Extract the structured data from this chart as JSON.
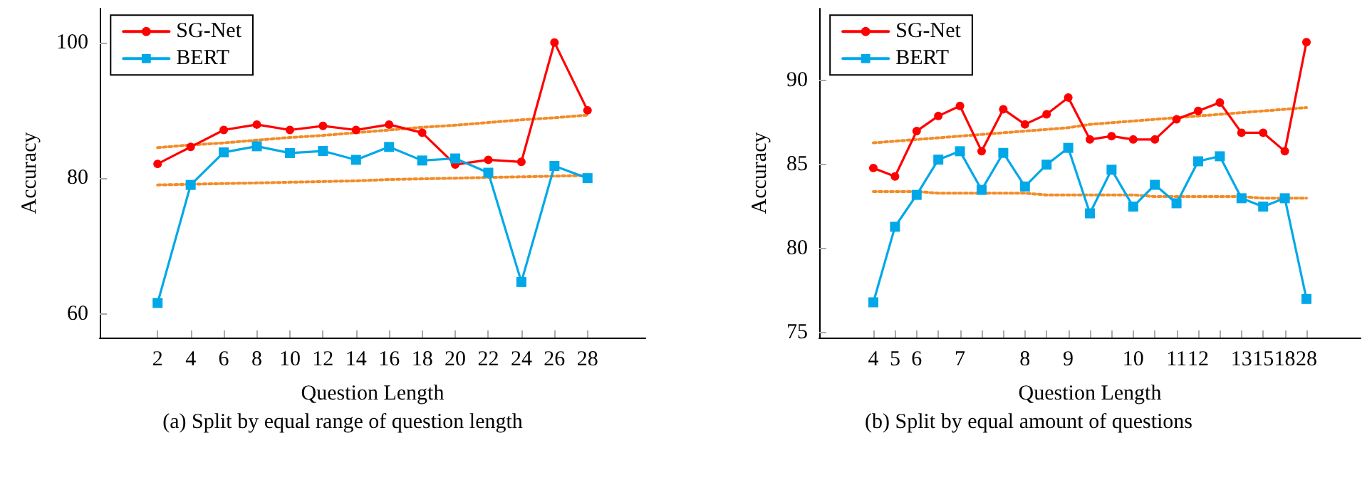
{
  "chart_data": [
    {
      "type": "line",
      "xlabel": "Question Length",
      "ylabel": "Accuracy",
      "annotations": [
        "(a) Split by equal range of question length"
      ],
      "x": [
        2,
        4,
        6,
        8,
        10,
        12,
        14,
        16,
        18,
        20,
        22,
        24,
        26,
        28
      ],
      "xlim": [
        -1.5,
        31.5
      ],
      "xticks": [
        2,
        4,
        6,
        8,
        10,
        12,
        14,
        16,
        18,
        20,
        22,
        24,
        26,
        28
      ],
      "ylim": [
        56.5,
        105
      ],
      "yticks": [
        60,
        80,
        100
      ],
      "grid": false,
      "legend": "top left",
      "line_style": "solid",
      "series": [
        {
          "name": "SG-Net",
          "color": "#ff0000",
          "marker": "circle",
          "values": [
            82.1,
            84.6,
            87.1,
            87.9,
            87.1,
            87.7,
            87.1,
            87.9,
            86.7,
            82.0,
            82.7,
            82.4,
            100,
            90.0
          ]
        },
        {
          "name": "BERT",
          "color": "#00a8e8",
          "marker": "square",
          "values": [
            61.6,
            79.0,
            83.8,
            84.7,
            83.7,
            84.0,
            82.7,
            84.6,
            82.6,
            82.9,
            80.8,
            64.7,
            81.8,
            80.0
          ]
        },
        {
          "color": "#f28c28",
          "marker": "none",
          "line_style": "dotted",
          "values": [
            84.5,
            84.9,
            85.2,
            85.6,
            86.0,
            86.3,
            86.7,
            87.1,
            87.5,
            87.8,
            88.2,
            88.6,
            88.9,
            89.3
          ]
        },
        {
          "color": "#f28c28",
          "marker": "none",
          "line_style": "dotted",
          "values": [
            79.0,
            79.1,
            79.2,
            79.3,
            79.4,
            79.5,
            79.6,
            79.8,
            79.9,
            80.0,
            80.1,
            80.2,
            80.3,
            80.4
          ]
        }
      ]
    },
    {
      "type": "line",
      "xlabel": "Question Length",
      "ylabel": "Accuracy",
      "annotations": [
        "(b) Split by equal amount of questions"
      ],
      "categories": [
        "4",
        "5",
        "6",
        null,
        "7",
        null,
        null,
        "8",
        null,
        "9",
        null,
        null,
        "10",
        null,
        "11",
        "12",
        null,
        "13",
        "15",
        "18",
        "28"
      ],
      "ylim": [
        74.7,
        94.3
      ],
      "yticks": [
        75,
        80,
        85,
        90
      ],
      "grid": false,
      "legend": "top left",
      "line_style": "solid",
      "series": [
        {
          "name": "SG-Net",
          "color": "#ff0000",
          "marker": "circle",
          "values": [
            84.8,
            84.3,
            87.0,
            87.9,
            88.5,
            85.8,
            88.3,
            87.4,
            88.0,
            89.0,
            86.5,
            86.7,
            86.5,
            86.5,
            87.7,
            88.2,
            88.7,
            86.9,
            86.9,
            85.8,
            92.3
          ]
        },
        {
          "name": "BERT",
          "color": "#00a8e8",
          "marker": "square",
          "values": [
            76.8,
            81.3,
            83.2,
            85.3,
            85.8,
            83.5,
            85.7,
            83.7,
            85.0,
            86.0,
            82.1,
            84.7,
            82.5,
            83.8,
            82.7,
            85.2,
            85.5,
            83.0,
            82.5,
            83.0,
            77.0
          ]
        },
        {
          "color": "#f28c28",
          "marker": "none",
          "line_style": "dotted",
          "values": [
            86.3,
            86.4,
            86.5,
            86.6,
            86.7,
            86.8,
            86.9,
            87.0,
            87.1,
            87.2,
            87.4,
            87.5,
            87.6,
            87.7,
            87.8,
            87.9,
            88.0,
            88.1,
            88.2,
            88.3,
            88.4
          ]
        },
        {
          "color": "#f28c28",
          "marker": "none",
          "line_style": "dotted",
          "values": [
            83.4,
            83.4,
            83.4,
            83.3,
            83.3,
            83.3,
            83.3,
            83.3,
            83.2,
            83.2,
            83.2,
            83.2,
            83.2,
            83.1,
            83.1,
            83.1,
            83.1,
            83.1,
            83.0,
            83.0,
            83.0
          ]
        }
      ]
    }
  ]
}
